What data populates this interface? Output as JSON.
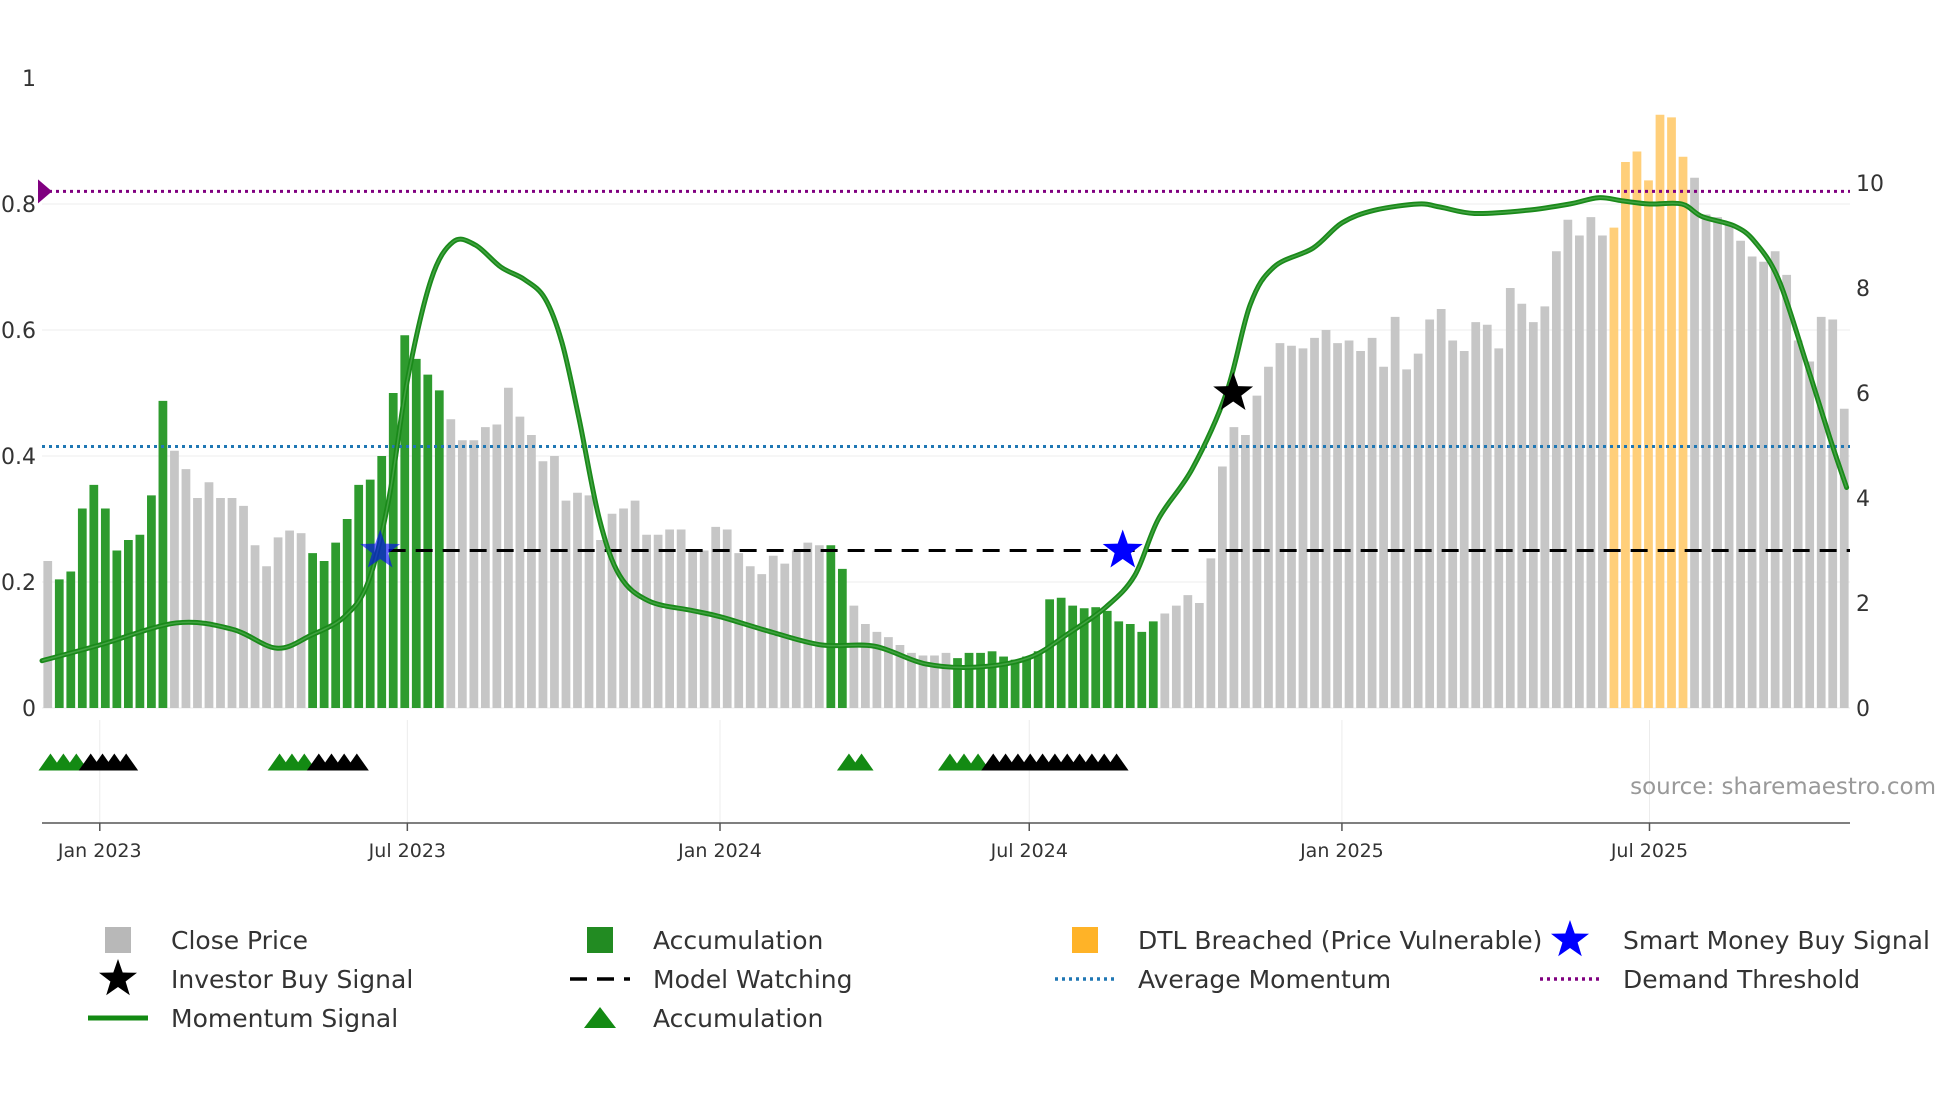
{
  "chart_data": {
    "type": "bar",
    "source": "source: sharemaestro.com",
    "left_axis": {
      "ylim": [
        0,
        1
      ],
      "ticks": [
        0,
        0.2,
        0.4,
        0.6,
        0.8
      ],
      "tick_labels": [
        "0",
        "0.2",
        "0.4",
        "0.6",
        "0.8",
        "1"
      ]
    },
    "right_axis": {
      "ylim": [
        0,
        12
      ],
      "ticks": [
        0,
        2,
        4,
        6,
        8,
        10
      ],
      "tick_labels": [
        "0",
        "2",
        "4",
        "6",
        "8",
        "10"
      ]
    },
    "x_axis": {
      "start": "2022-11-28",
      "end": "2025-10-27",
      "ticks": [
        {
          "date": "2023-01-01",
          "label": "Jan 2023"
        },
        {
          "date": "2023-07-01",
          "label": "Jul 2023"
        },
        {
          "date": "2024-01-01",
          "label": "Jan 2024"
        },
        {
          "date": "2024-07-01",
          "label": "Jul 2024"
        },
        {
          "date": "2025-01-01",
          "label": "Jan 2025"
        },
        {
          "date": "2025-07-01",
          "label": "Jul 2025"
        }
      ]
    },
    "close_price_weekly": [
      2.8,
      2.45,
      2.6,
      3.8,
      4.25,
      3.8,
      3.0,
      3.2,
      3.3,
      4.05,
      5.85,
      4.9,
      4.55,
      4.0,
      4.3,
      4.0,
      4.0,
      3.85,
      3.1,
      2.7,
      3.25,
      3.38,
      3.33,
      2.95,
      2.8,
      3.15,
      3.6,
      4.25,
      4.35,
      4.8,
      6.0,
      7.1,
      6.65,
      6.35,
      6.05,
      5.5,
      5.1,
      5.1,
      5.35,
      5.4,
      6.1,
      5.55,
      5.2,
      4.7,
      4.8,
      3.95,
      4.1,
      4.05,
      3.2,
      3.7,
      3.8,
      3.95,
      3.3,
      3.3,
      3.4,
      3.4,
      3.0,
      3.0,
      3.45,
      3.4,
      2.95,
      2.7,
      2.55,
      2.9,
      2.75,
      3.0,
      3.15,
      3.1,
      3.1,
      2.65,
      1.95,
      1.6,
      1.45,
      1.35,
      1.2,
      1.05,
      1.0,
      1.0,
      1.05,
      0.95,
      1.05,
      1.05,
      1.08,
      0.98,
      0.92,
      0.98,
      1.08,
      2.07,
      2.1,
      1.95,
      1.9,
      1.92,
      1.85,
      1.65,
      1.6,
      1.45,
      1.65,
      1.8,
      1.95,
      2.15,
      2.0,
      2.85,
      4.6,
      5.35,
      5.2,
      5.95,
      6.5,
      6.95,
      6.9,
      6.85,
      7.05,
      7.2,
      6.95,
      7.0,
      6.8,
      7.05,
      6.5,
      7.45,
      6.45,
      6.75,
      7.4,
      7.6,
      7.0,
      6.8,
      7.35,
      7.3,
      6.85,
      8.0,
      7.7,
      7.35,
      7.65,
      8.7,
      9.3,
      9.0,
      9.35,
      9.0,
      9.15,
      10.4,
      10.6,
      10.05,
      11.3,
      11.25,
      10.5,
      10.1,
      9.4,
      9.35,
      9.2,
      8.9,
      8.6,
      8.5,
      8.7,
      8.25,
      7.0,
      6.6,
      7.45,
      7.4,
      5.7
    ],
    "accumulation_weeks": [
      1,
      2,
      3,
      4,
      5,
      6,
      7,
      8,
      9,
      10,
      23,
      24,
      25,
      26,
      27,
      28,
      29,
      30,
      31,
      32,
      33,
      34,
      68,
      69,
      79,
      80,
      81,
      82,
      83,
      84,
      85,
      86,
      87,
      88,
      89,
      90,
      91,
      92,
      93,
      94,
      95,
      96
    ],
    "dtl_breached_weeks": [
      136,
      137,
      138,
      139,
      140,
      141,
      142
    ],
    "momentum_signal": [
      {
        "d": "2022-11-28",
        "v": 0.075
      },
      {
        "d": "2023-01-01",
        "v": 0.1
      },
      {
        "d": "2023-02-15",
        "v": 0.135
      },
      {
        "d": "2023-03-20",
        "v": 0.125
      },
      {
        "d": "2023-04-15",
        "v": 0.095
      },
      {
        "d": "2023-05-05",
        "v": 0.115
      },
      {
        "d": "2023-05-25",
        "v": 0.145
      },
      {
        "d": "2023-06-08",
        "v": 0.2
      },
      {
        "d": "2023-06-20",
        "v": 0.33
      },
      {
        "d": "2023-07-01",
        "v": 0.52
      },
      {
        "d": "2023-07-15",
        "v": 0.68
      },
      {
        "d": "2023-07-28",
        "v": 0.74
      },
      {
        "d": "2023-08-10",
        "v": 0.735
      },
      {
        "d": "2023-08-25",
        "v": 0.7
      },
      {
        "d": "2023-09-08",
        "v": 0.68
      },
      {
        "d": "2023-09-20",
        "v": 0.65
      },
      {
        "d": "2023-09-30",
        "v": 0.58
      },
      {
        "d": "2023-10-10",
        "v": 0.46
      },
      {
        "d": "2023-10-22",
        "v": 0.3
      },
      {
        "d": "2023-11-03",
        "v": 0.21
      },
      {
        "d": "2023-11-20",
        "v": 0.17
      },
      {
        "d": "2023-12-15",
        "v": 0.155
      },
      {
        "d": "2024-01-01",
        "v": 0.145
      },
      {
        "d": "2024-02-01",
        "v": 0.12
      },
      {
        "d": "2024-03-01",
        "v": 0.1
      },
      {
        "d": "2024-04-01",
        "v": 0.098
      },
      {
        "d": "2024-05-01",
        "v": 0.07
      },
      {
        "d": "2024-06-01",
        "v": 0.065
      },
      {
        "d": "2024-07-01",
        "v": 0.08
      },
      {
        "d": "2024-07-25",
        "v": 0.12
      },
      {
        "d": "2024-08-15",
        "v": 0.16
      },
      {
        "d": "2024-09-01",
        "v": 0.21
      },
      {
        "d": "2024-09-15",
        "v": 0.3
      },
      {
        "d": "2024-10-05",
        "v": 0.38
      },
      {
        "d": "2024-10-25",
        "v": 0.5
      },
      {
        "d": "2024-11-08",
        "v": 0.64
      },
      {
        "d": "2024-11-22",
        "v": 0.7
      },
      {
        "d": "2024-12-15",
        "v": 0.73
      },
      {
        "d": "2025-01-01",
        "v": 0.77
      },
      {
        "d": "2025-01-20",
        "v": 0.79
      },
      {
        "d": "2025-02-15",
        "v": 0.8
      },
      {
        "d": "2025-02-28",
        "v": 0.795
      },
      {
        "d": "2025-03-20",
        "v": 0.785
      },
      {
        "d": "2025-04-20",
        "v": 0.79
      },
      {
        "d": "2025-05-15",
        "v": 0.8
      },
      {
        "d": "2025-06-01",
        "v": 0.81
      },
      {
        "d": "2025-06-15",
        "v": 0.805
      },
      {
        "d": "2025-07-01",
        "v": 0.8
      },
      {
        "d": "2025-07-20",
        "v": 0.8
      },
      {
        "d": "2025-08-01",
        "v": 0.78
      },
      {
        "d": "2025-08-20",
        "v": 0.765
      },
      {
        "d": "2025-09-01",
        "v": 0.74
      },
      {
        "d": "2025-09-15",
        "v": 0.68
      },
      {
        "d": "2025-10-01",
        "v": 0.55
      },
      {
        "d": "2025-10-15",
        "v": 0.43
      },
      {
        "d": "2025-10-25",
        "v": 0.35
      }
    ],
    "model_watching": {
      "value": 0.25,
      "from": "2023-06-20",
      "to": "2025-10-27"
    },
    "average_momentum": 0.415,
    "demand_threshold": 0.82,
    "smart_money_buy_signals": [
      {
        "d": "2023-06-15",
        "v": 0.25
      },
      {
        "d": "2024-08-25",
        "v": 0.25
      }
    ],
    "investor_buy_signals": [
      {
        "d": "2024-10-29",
        "v": 0.5
      }
    ],
    "accumulation_markers": [
      {
        "from": "2022-11-28",
        "to": "2022-12-22",
        "color": "green"
      },
      {
        "from": "2022-12-22",
        "to": "2023-01-20",
        "color": "black"
      },
      {
        "from": "2023-04-12",
        "to": "2023-05-05",
        "color": "green"
      },
      {
        "from": "2023-05-05",
        "to": "2023-06-05",
        "color": "black"
      },
      {
        "from": "2024-03-12",
        "to": "2024-03-28",
        "color": "green"
      },
      {
        "from": "2024-05-10",
        "to": "2024-06-05",
        "color": "green"
      },
      {
        "from": "2024-06-05",
        "to": "2024-08-25",
        "color": "black"
      }
    ],
    "legend": [
      {
        "label": "Close Price",
        "kind": "square",
        "color": "#b8b8b8"
      },
      {
        "label": "Accumulation",
        "kind": "square",
        "color": "#228b22"
      },
      {
        "label": "DTL Breached (Price Vulnerable)",
        "kind": "square",
        "color": "#ffb327"
      },
      {
        "label": "Smart Money Buy Signal",
        "kind": "star",
        "color": "#0000ff"
      },
      {
        "label": "Investor Buy Signal",
        "kind": "star",
        "color": "#000000"
      },
      {
        "label": "Model Watching",
        "kind": "dash",
        "color": "#000000"
      },
      {
        "label": "Average Momentum",
        "kind": "dot",
        "color": "#1f77b4"
      },
      {
        "label": "Demand Threshold",
        "kind": "dot",
        "color": "#800080"
      },
      {
        "label": "Momentum Signal",
        "kind": "line",
        "color": "#138a13"
      },
      {
        "label": "Accumulation",
        "kind": "triangle",
        "color": "#138a13"
      }
    ]
  }
}
